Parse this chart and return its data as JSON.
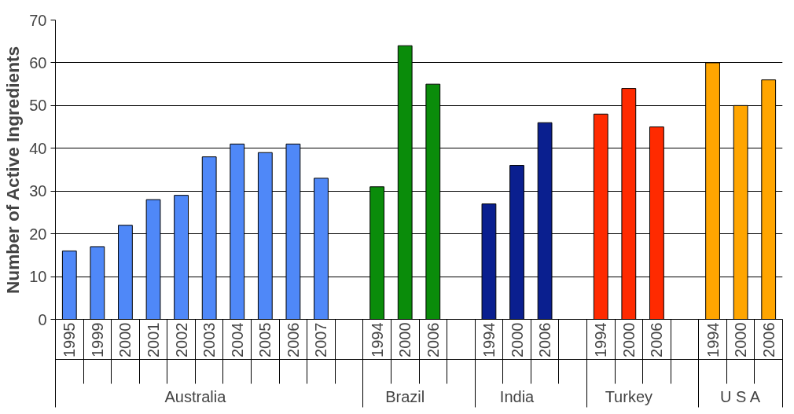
{
  "chart_data": {
    "type": "bar",
    "ylabel": "Number of Active Ingredients",
    "categories": [
      "1995",
      "1999",
      "2000",
      "2001",
      "2002",
      "2003",
      "2004",
      "2005",
      "2006",
      "2007",
      null,
      "1994",
      "2000",
      "2006",
      null,
      "1994",
      "2000",
      "2006",
      null,
      "1994",
      "2000",
      "2006",
      null,
      "1994",
      "2000",
      "2006"
    ],
    "series": [
      {
        "name": "Australia",
        "color": "#4f88f8",
        "values": [
          16,
          17,
          22,
          28,
          29,
          38,
          41,
          39,
          41,
          33,
          null,
          null,
          null,
          null,
          null,
          null,
          null,
          null,
          null,
          null,
          null,
          null,
          null,
          null,
          null,
          null
        ]
      },
      {
        "name": "Brazil",
        "color": "#0a8c0a",
        "values": [
          null,
          null,
          null,
          null,
          null,
          null,
          null,
          null,
          null,
          null,
          null,
          31,
          64,
          55,
          null,
          null,
          null,
          null,
          null,
          null,
          null,
          null,
          null,
          null,
          null,
          null
        ]
      },
      {
        "name": "India",
        "color": "#0a1f8f",
        "values": [
          null,
          null,
          null,
          null,
          null,
          null,
          null,
          null,
          null,
          null,
          null,
          null,
          null,
          null,
          null,
          27,
          36,
          46,
          null,
          null,
          null,
          null,
          null,
          null,
          null,
          null
        ]
      },
      {
        "name": "Turkey",
        "color": "#ff2a00",
        "values": [
          null,
          null,
          null,
          null,
          null,
          null,
          null,
          null,
          null,
          null,
          null,
          null,
          null,
          null,
          null,
          null,
          null,
          null,
          null,
          48,
          54,
          45,
          null,
          null,
          null,
          null
        ]
      },
      {
        "name": "U S A",
        "color": "#ffa500",
        "values": [
          null,
          null,
          null,
          null,
          null,
          null,
          null,
          null,
          null,
          null,
          null,
          null,
          null,
          null,
          null,
          null,
          null,
          null,
          null,
          null,
          null,
          null,
          null,
          60,
          50,
          56
        ]
      }
    ],
    "ylim": [
      0,
      70
    ],
    "yticks": [
      0,
      10,
      20,
      30,
      40,
      50,
      60,
      70
    ],
    "grid": "y",
    "legend": "bottom"
  }
}
